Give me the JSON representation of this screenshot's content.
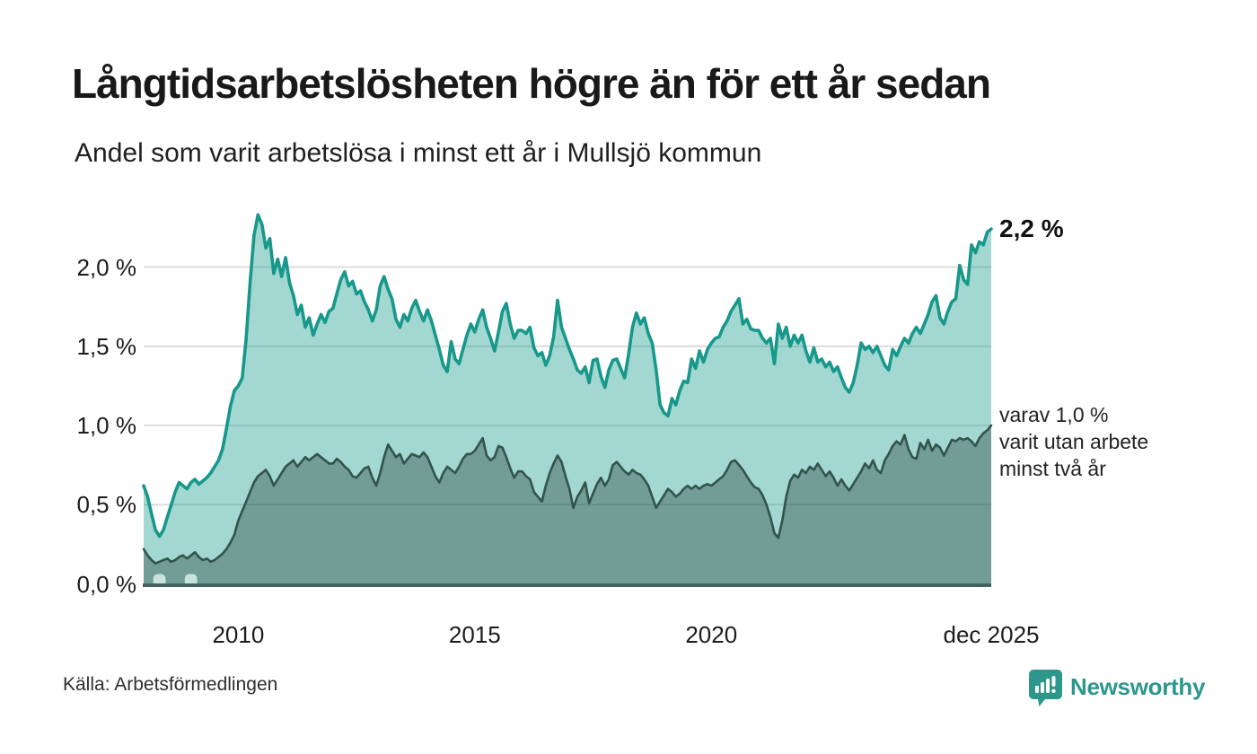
{
  "header": {
    "title": "Långtidsarbetslösheten högre än för ett år sedan",
    "subtitle": "Andel som varit arbetslösa i minst ett år i Mullsjö kommun"
  },
  "chart_data": {
    "type": "area",
    "title": "Långtidsarbetslösheten högre än för ett år sedan",
    "subtitle": "Andel som varit arbetslösa i minst ett år i Mullsjö kommun",
    "unit": "%",
    "x_start": "2008-01",
    "x_end": "2025-12",
    "frequency": "monthly",
    "x_ticks": [
      {
        "label": "2010",
        "month_index": 24
      },
      {
        "label": "2015",
        "month_index": 84
      },
      {
        "label": "2020",
        "month_index": 144
      },
      {
        "label": "dec 2025",
        "month_index": 215
      }
    ],
    "y_ticks": [
      {
        "label": "0,0 %",
        "value": 0
      },
      {
        "label": "0,5 %",
        "value": 0.5
      },
      {
        "label": "1,0 %",
        "value": 1
      },
      {
        "label": "1,5 %",
        "value": 1.5
      },
      {
        "label": "2,0 %",
        "value": 2
      }
    ],
    "ylim": [
      0,
      2.4
    ],
    "grid": true,
    "gridline_color": "#d4d4d4",
    "baseline_color": "#44625c",
    "series": [
      {
        "name": "Andel som varit arbetslösa i minst ett år",
        "end_label": "2,2 %",
        "line_color": "#17988a",
        "fill_color": "rgba(24,154,140,0.40)",
        "values": [
          0.62,
          0.55,
          0.44,
          0.34,
          0.3,
          0.34,
          0.42,
          0.5,
          0.58,
          0.64,
          0.62,
          0.6,
          0.64,
          0.66,
          0.63,
          0.65,
          0.67,
          0.7,
          0.74,
          0.78,
          0.85,
          0.98,
          1.12,
          1.22,
          1.25,
          1.3,
          1.55,
          1.9,
          2.2,
          2.33,
          2.27,
          2.12,
          2.18,
          1.96,
          2.05,
          1.94,
          2.06,
          1.9,
          1.82,
          1.7,
          1.76,
          1.62,
          1.68,
          1.57,
          1.64,
          1.7,
          1.65,
          1.72,
          1.74,
          1.83,
          1.92,
          1.97,
          1.88,
          1.91,
          1.83,
          1.85,
          1.78,
          1.73,
          1.66,
          1.73,
          1.88,
          1.94,
          1.86,
          1.8,
          1.67,
          1.62,
          1.7,
          1.66,
          1.74,
          1.79,
          1.72,
          1.66,
          1.73,
          1.66,
          1.57,
          1.48,
          1.38,
          1.34,
          1.53,
          1.42,
          1.39,
          1.48,
          1.57,
          1.64,
          1.59,
          1.67,
          1.73,
          1.62,
          1.55,
          1.47,
          1.59,
          1.72,
          1.77,
          1.64,
          1.55,
          1.6,
          1.6,
          1.58,
          1.62,
          1.49,
          1.44,
          1.46,
          1.38,
          1.44,
          1.56,
          1.79,
          1.62,
          1.55,
          1.48,
          1.42,
          1.35,
          1.33,
          1.37,
          1.27,
          1.41,
          1.42,
          1.31,
          1.24,
          1.35,
          1.41,
          1.42,
          1.36,
          1.3,
          1.45,
          1.62,
          1.71,
          1.64,
          1.68,
          1.58,
          1.52,
          1.35,
          1.13,
          1.08,
          1.06,
          1.17,
          1.13,
          1.22,
          1.28,
          1.27,
          1.42,
          1.36,
          1.47,
          1.4,
          1.48,
          1.52,
          1.55,
          1.56,
          1.62,
          1.66,
          1.72,
          1.76,
          1.8,
          1.64,
          1.67,
          1.61,
          1.6,
          1.6,
          1.55,
          1.52,
          1.55,
          1.39,
          1.64,
          1.55,
          1.62,
          1.5,
          1.57,
          1.52,
          1.57,
          1.47,
          1.4,
          1.49,
          1.4,
          1.42,
          1.37,
          1.4,
          1.34,
          1.37,
          1.3,
          1.24,
          1.21,
          1.27,
          1.38,
          1.52,
          1.48,
          1.5,
          1.46,
          1.5,
          1.44,
          1.38,
          1.35,
          1.48,
          1.44,
          1.5,
          1.55,
          1.52,
          1.58,
          1.62,
          1.58,
          1.64,
          1.7,
          1.78,
          1.82,
          1.68,
          1.64,
          1.72,
          1.78,
          1.8,
          2.01,
          1.92,
          1.89,
          2.14,
          2.09,
          2.16,
          2.14,
          2.22,
          2.24
        ]
      },
      {
        "name": "varav utan arbete minst två år",
        "end_label": "varav 1,0 % varit utan arbete minst två år",
        "line_color": "#33534d",
        "fill_color": "rgba(26,56,50,0.37)",
        "values": [
          0.22,
          0.18,
          0.15,
          0.13,
          0.14,
          0.15,
          0.16,
          0.14,
          0.15,
          0.17,
          0.18,
          0.16,
          0.18,
          0.2,
          0.17,
          0.15,
          0.16,
          0.14,
          0.15,
          0.17,
          0.19,
          0.22,
          0.26,
          0.31,
          0.4,
          0.46,
          0.52,
          0.58,
          0.64,
          0.68,
          0.7,
          0.72,
          0.68,
          0.62,
          0.66,
          0.7,
          0.74,
          0.76,
          0.78,
          0.74,
          0.77,
          0.8,
          0.78,
          0.8,
          0.82,
          0.8,
          0.78,
          0.76,
          0.76,
          0.79,
          0.77,
          0.74,
          0.72,
          0.68,
          0.67,
          0.7,
          0.73,
          0.74,
          0.67,
          0.62,
          0.7,
          0.8,
          0.88,
          0.84,
          0.8,
          0.82,
          0.76,
          0.79,
          0.82,
          0.81,
          0.8,
          0.83,
          0.8,
          0.74,
          0.68,
          0.64,
          0.7,
          0.74,
          0.72,
          0.7,
          0.74,
          0.79,
          0.82,
          0.82,
          0.84,
          0.88,
          0.92,
          0.81,
          0.78,
          0.8,
          0.87,
          0.86,
          0.8,
          0.73,
          0.67,
          0.71,
          0.71,
          0.68,
          0.66,
          0.58,
          0.55,
          0.52,
          0.62,
          0.7,
          0.76,
          0.81,
          0.77,
          0.68,
          0.6,
          0.48,
          0.55,
          0.59,
          0.64,
          0.51,
          0.57,
          0.63,
          0.67,
          0.62,
          0.66,
          0.75,
          0.77,
          0.74,
          0.71,
          0.69,
          0.72,
          0.7,
          0.69,
          0.66,
          0.62,
          0.55,
          0.48,
          0.52,
          0.56,
          0.6,
          0.58,
          0.55,
          0.57,
          0.6,
          0.62,
          0.6,
          0.62,
          0.6,
          0.62,
          0.63,
          0.62,
          0.64,
          0.66,
          0.68,
          0.72,
          0.77,
          0.78,
          0.75,
          0.72,
          0.68,
          0.64,
          0.61,
          0.6,
          0.56,
          0.5,
          0.42,
          0.32,
          0.29,
          0.4,
          0.55,
          0.65,
          0.69,
          0.67,
          0.72,
          0.7,
          0.74,
          0.72,
          0.76,
          0.72,
          0.68,
          0.71,
          0.67,
          0.62,
          0.66,
          0.62,
          0.59,
          0.63,
          0.67,
          0.71,
          0.76,
          0.73,
          0.78,
          0.72,
          0.7,
          0.78,
          0.82,
          0.87,
          0.9,
          0.88,
          0.94,
          0.85,
          0.8,
          0.79,
          0.89,
          0.85,
          0.91,
          0.84,
          0.88,
          0.86,
          0.81,
          0.86,
          0.91,
          0.9,
          0.92,
          0.91,
          0.92,
          0.9,
          0.87,
          0.92,
          0.95,
          0.97,
          1.0
        ]
      }
    ],
    "data_gaps": {
      "fill_color": "#c8e3dd",
      "ranges": [
        {
          "from_month": 3,
          "to_month": 5
        },
        {
          "from_month": 11,
          "to_month": 13
        }
      ]
    }
  },
  "annotations": {
    "end_value_label": "2,2 %",
    "secondary_lines": [
      "varav 1,0 %",
      "varit utan arbete",
      "minst två år"
    ]
  },
  "footer": {
    "source": "Källa: Arbetsförmedlingen",
    "brand": "Newsworthy"
  }
}
